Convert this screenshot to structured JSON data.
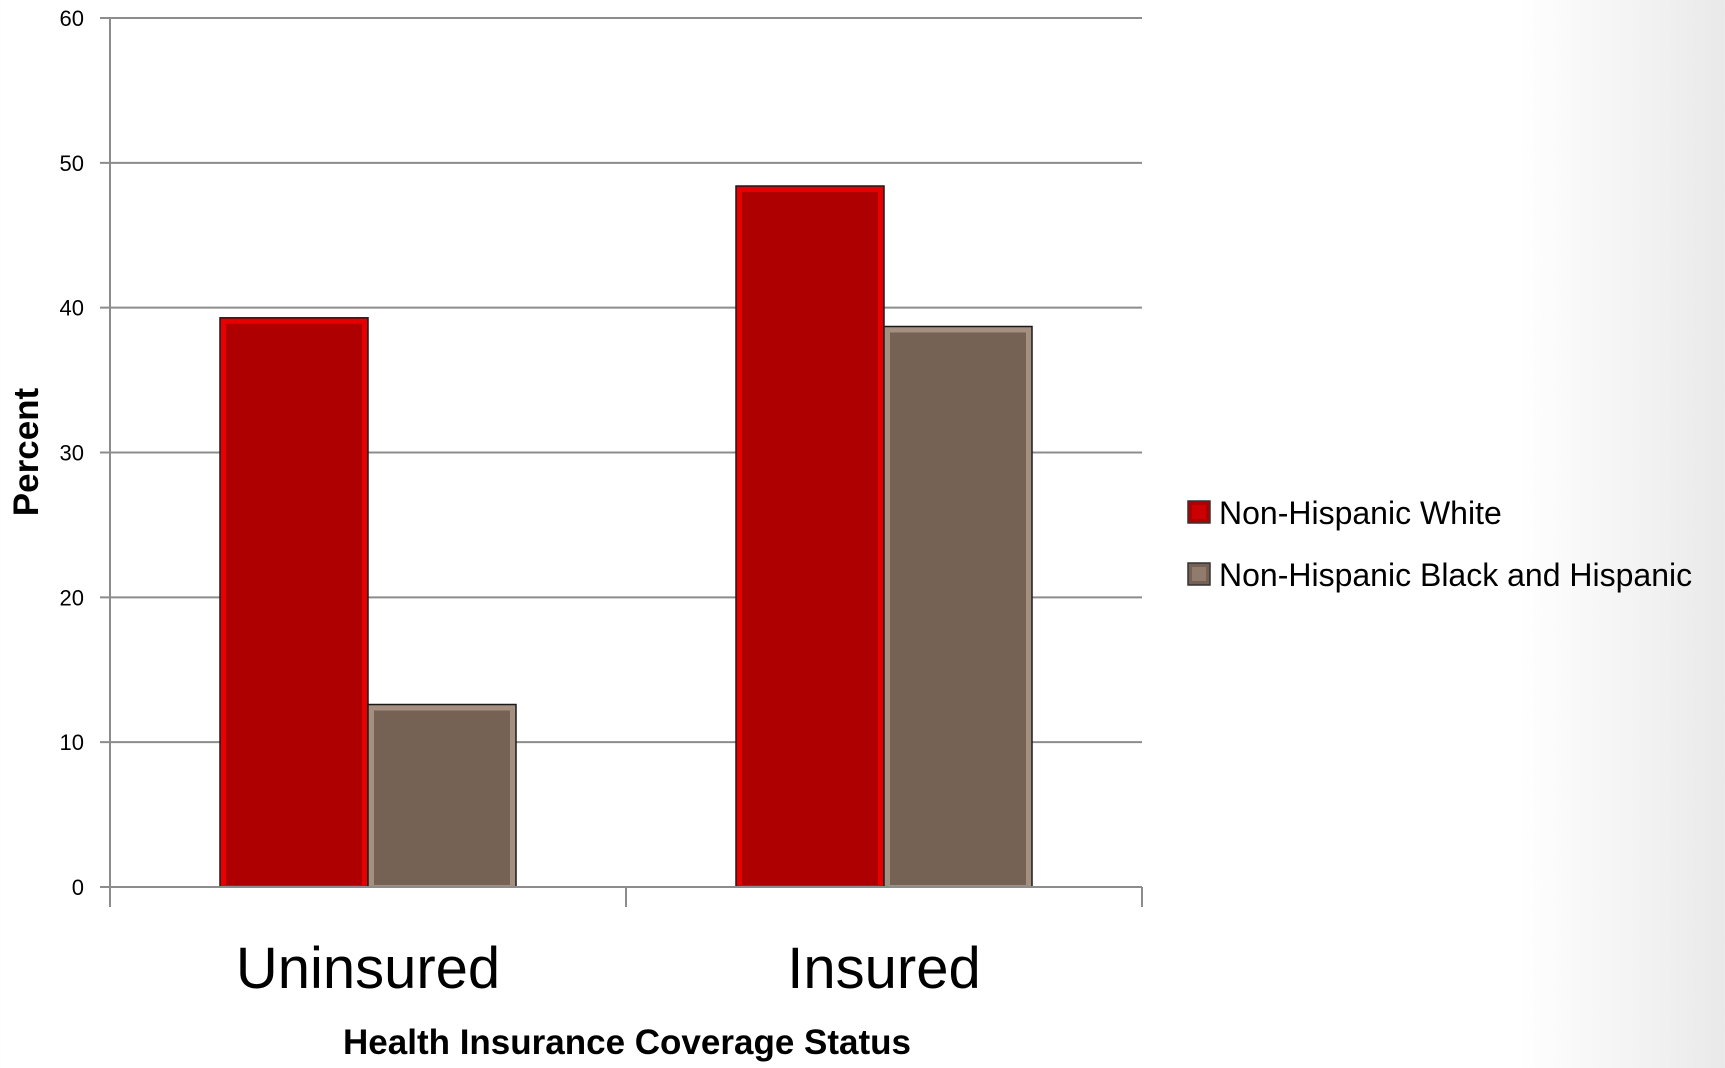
{
  "chart_data": {
    "type": "bar",
    "categories": [
      "Uninsured",
      "Insured"
    ],
    "series": [
      {
        "name": "Non-Hispanic White",
        "values": [
          39.3,
          48.4
        ],
        "color": "#ae0000",
        "edge_color": "#e60000"
      },
      {
        "name": "Non-Hispanic Black and Hispanic",
        "values": [
          12.6,
          38.7
        ],
        "color": "#756255",
        "edge_color": "#a58f80"
      }
    ],
    "title": "",
    "xlabel": "Health Insurance Coverage Status",
    "ylabel": "Percent",
    "ylim": [
      0,
      60
    ],
    "yticks": [
      0,
      10,
      20,
      30,
      40,
      50,
      60
    ],
    "grid": true,
    "legend_position": "right"
  }
}
